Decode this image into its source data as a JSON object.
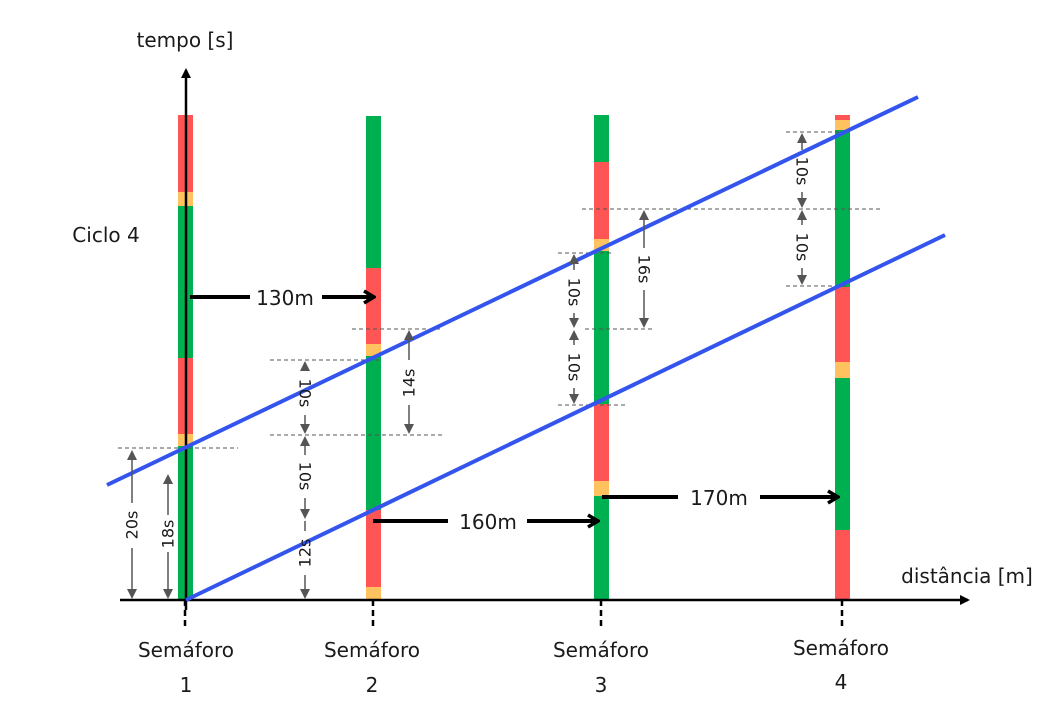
{
  "axes": {
    "y_label": "tempo [s]",
    "x_label": "distância [m]"
  },
  "cycle_label": "Ciclo 4",
  "colors": {
    "green": "#00b050",
    "red": "#ff5555",
    "amber": "#ffc25e",
    "band": "#3355ee",
    "axis": "#000000",
    "guide": "#555555"
  },
  "signals": [
    {
      "name": "Semáforo",
      "number": "1"
    },
    {
      "name": "Semáforo",
      "number": "2"
    },
    {
      "name": "Semáforo",
      "number": "3"
    },
    {
      "name": "Semáforo",
      "number": "4"
    }
  ],
  "distances": [
    "130m",
    "160m",
    "170m"
  ],
  "durations": {
    "s1_20": "20s",
    "s1_18": "18s",
    "s2_12": "12s",
    "s2_10a": "10s",
    "s2_10b": "10s",
    "s2_14": "14s",
    "s3_10a": "10s",
    "s3_10b": "10s",
    "s3_16": "16s",
    "s4_10a": "10s",
    "s4_10b": "10s"
  }
}
